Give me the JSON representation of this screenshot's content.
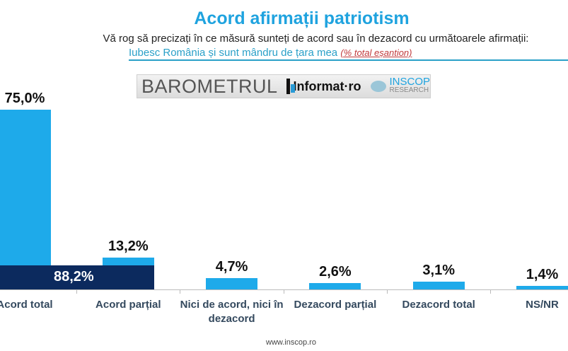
{
  "header": {
    "title": "Acord afirmații patriotism",
    "question": "Vă rog să precizați în ce măsură sunteți de acord sau în dezacord cu următoarele afirmații:",
    "statement": "Iubesc România și sunt mândru de țara mea",
    "note": "(% total eșantion)"
  },
  "logo": {
    "barometrul": "BAROMETRUL",
    "informat": "Informat·ro",
    "inscop": "INSCOP",
    "research": "RESEARCH"
  },
  "chart_data": {
    "type": "bar",
    "title": "Acord afirmații patriotism",
    "categories": [
      "Acord total",
      "Acord parțial",
      "Nici de acord, nici în dezacord",
      "Dezacord parțial",
      "Dezacord total",
      "NS/NR"
    ],
    "values": [
      75.0,
      13.2,
      4.7,
      2.6,
      3.1,
      1.4
    ],
    "value_labels": [
      "75,0%",
      "13,2%",
      "4,7%",
      "2,6%",
      "3,1%",
      "1,4%"
    ],
    "combined_total": {
      "categories": [
        "Acord total",
        "Acord parțial"
      ],
      "value": 88.2,
      "label": "88,2%"
    },
    "ylim": [
      0,
      80
    ],
    "grid": false,
    "colors": {
      "bar": "#1eaaea",
      "total": "#0c2a5e",
      "title": "#1fa3df"
    }
  },
  "footer": {
    "url": "www.inscop.ro"
  }
}
